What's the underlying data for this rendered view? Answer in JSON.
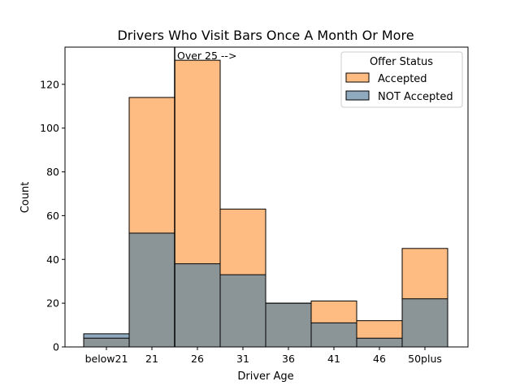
{
  "chart_data": {
    "type": "bar",
    "title": "Drivers Who Visit Bars Once A Month Or More",
    "xlabel": "Driver Age",
    "ylabel": "Count",
    "categories": [
      "below21",
      "21",
      "26",
      "31",
      "36",
      "41",
      "46",
      "50plus"
    ],
    "series": [
      {
        "name": "Accepted",
        "color": "#ffbc82",
        "values": [
          4,
          114,
          131,
          63,
          20,
          21,
          12,
          45
        ]
      },
      {
        "name": "NOT Accepted",
        "color": "#8fa9bf",
        "values": [
          6,
          52,
          38,
          33,
          20,
          11,
          4,
          22
        ]
      }
    ],
    "overlap_color": "#8b9598",
    "ylim": [
      0,
      137
    ],
    "yticks": [
      0,
      20,
      40,
      60,
      80,
      100,
      120
    ],
    "grid": false,
    "legend": {
      "title": "Offer Status",
      "placement": "top-right"
    },
    "annotation": {
      "text": "Over 25 -->",
      "x_between": [
        "21",
        "26"
      ]
    }
  }
}
